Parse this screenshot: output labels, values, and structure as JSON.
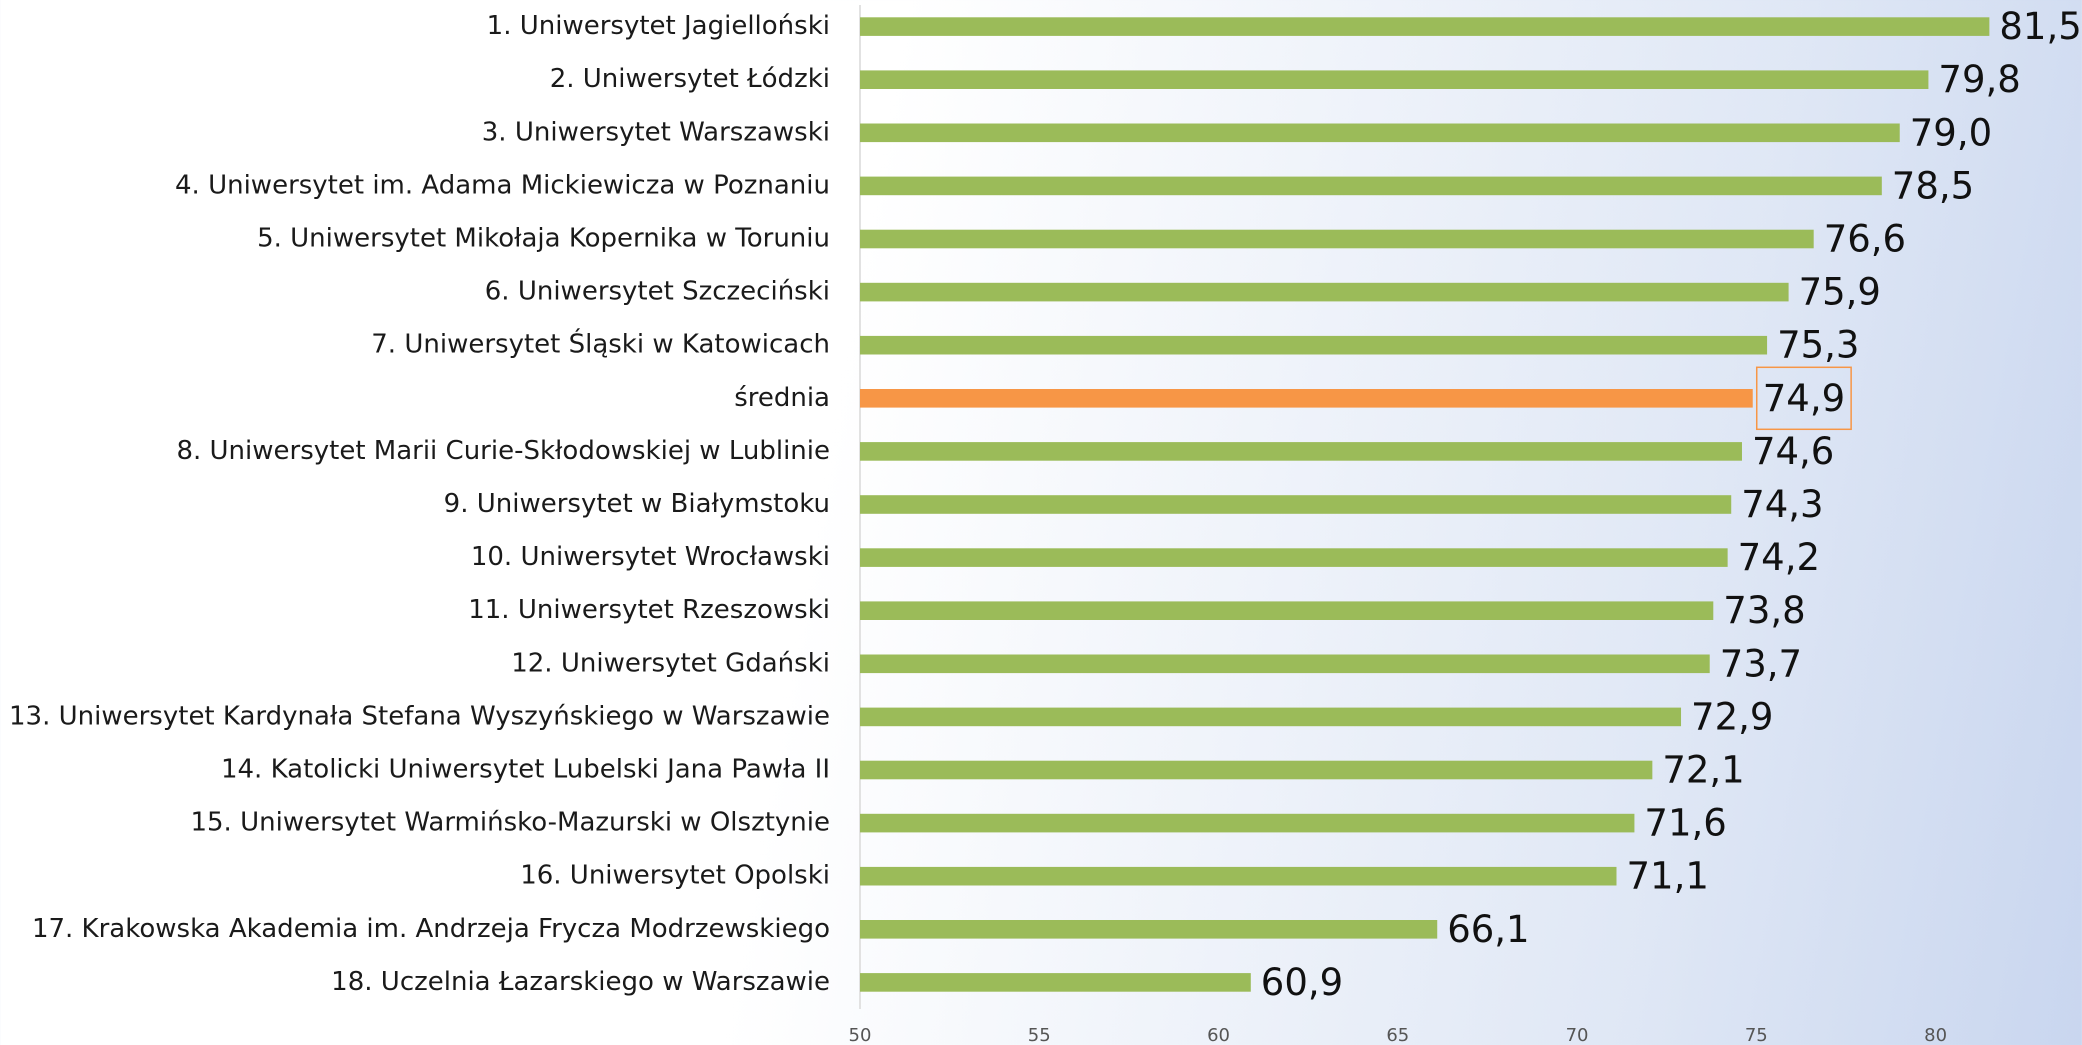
{
  "chart_data": {
    "type": "bar",
    "orientation": "horizontal",
    "categories": [
      "1. Uniwersytet Jagielloński",
      "2. Uniwersytet Łódzki",
      "3. Uniwersytet Warszawski",
      "4. Uniwersytet im. Adama Mickiewicza w Poznaniu",
      "5. Uniwersytet Mikołaja Kopernika w Toruniu",
      "6. Uniwersytet Szczeciński",
      "7. Uniwersytet Śląski w Katowicach",
      "średnia",
      "8. Uniwersytet Marii Curie-Skłodowskiej w Lublinie",
      "9. Uniwersytet w Białymstoku",
      "10. Uniwersytet Wrocławski",
      "11. Uniwersytet Rzeszowski",
      "12. Uniwersytet Gdański",
      "13. Uniwersytet Kardynała Stefana Wyszyńskiego w Warszawie",
      "14. Katolicki Uniwersytet Lubelski Jana Pawła II",
      "15. Uniwersytet Warmińsko-Mazurski w Olsztynie",
      "16. Uniwersytet Opolski",
      "17. Krakowska Akademia im. Andrzeja Frycza Modrzewskiego",
      "18. Uczelnia Łazarskiego w Warszawie"
    ],
    "values": [
      81.5,
      79.8,
      79.0,
      78.5,
      76.6,
      75.9,
      75.3,
      74.9,
      74.6,
      74.3,
      74.2,
      73.8,
      73.7,
      72.9,
      72.1,
      71.6,
      71.1,
      66.1,
      60.9
    ],
    "value_labels": [
      "81,5",
      "79,8",
      "79,0",
      "78,5",
      "76,6",
      "75,9",
      "75,3",
      "74,9",
      "74,6",
      "74,3",
      "74,2",
      "73,8",
      "73,7",
      "72,9",
      "72,1",
      "71,6",
      "71,1",
      "66,1",
      "60,9"
    ],
    "colors": [
      "#9bbb59",
      "#9bbb59",
      "#9bbb59",
      "#9bbb59",
      "#9bbb59",
      "#9bbb59",
      "#9bbb59",
      "#f79646",
      "#9bbb59",
      "#9bbb59",
      "#9bbb59",
      "#9bbb59",
      "#9bbb59",
      "#9bbb59",
      "#9bbb59",
      "#9bbb59",
      "#9bbb59",
      "#9bbb59",
      "#9bbb59"
    ],
    "xlim": [
      50,
      84
    ],
    "xticks": [
      50,
      55,
      60,
      65,
      70,
      75,
      80
    ],
    "grid": false
  }
}
